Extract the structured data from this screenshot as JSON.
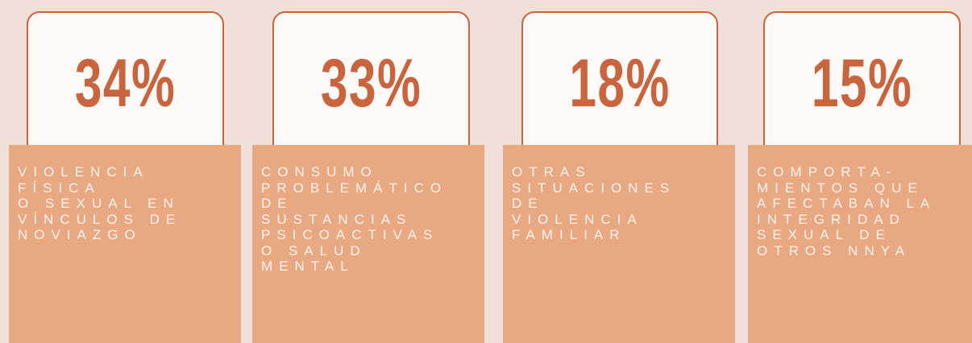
{
  "cards": [
    {
      "value": "34%",
      "label": [
        "VIOLENCIA",
        "FÍSICA",
        "O SEXUAL EN",
        "VÍNCULOS DE",
        "NOVIAZGO"
      ]
    },
    {
      "value": "33%",
      "label": [
        "CONSUMO",
        "PROBLEMÁTICO",
        "DE",
        "SUSTANCIAS",
        "PSICOACTIVAS",
        "O SALUD",
        "MENTAL"
      ]
    },
    {
      "value": "18%",
      "label": [
        "OTRAS",
        "SITUACIONES",
        "DE",
        "VIOLENCIA",
        "FAMILIAR"
      ]
    },
    {
      "value": "15%",
      "label": [
        "COMPORTA-",
        "MIENTOS QUE",
        "AFECTABAN LA",
        "INTEGRIDAD",
        "SEXUAL DE",
        "OTROS NNYA"
      ]
    }
  ]
}
